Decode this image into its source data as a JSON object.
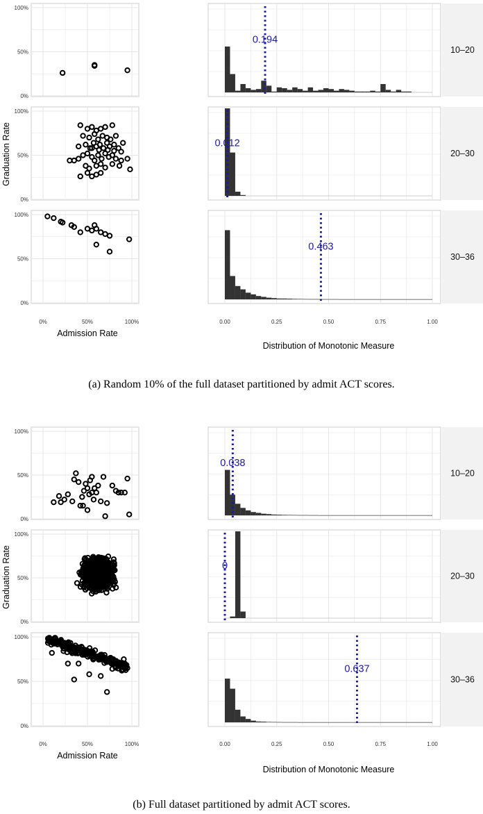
{
  "chart_data": [
    {
      "figure": "a",
      "caption": "(a) Random 10% of the full dataset partitioned by admit ACT scores.",
      "scatter": {
        "type": "scatter",
        "xlabel": "Admission Rate",
        "ylabel": "Graduation Rate",
        "xlim": [
          0,
          1
        ],
        "ylim": [
          0,
          1
        ],
        "x_ticks": [
          "0%",
          "50%",
          "100%"
        ],
        "y_ticks": [
          "0%",
          "50%",
          "100%"
        ],
        "panels": [
          {
            "facet": "10–20",
            "points": [
              [
                0.22,
                0.26
              ],
              [
                0.58,
                0.35
              ],
              [
                0.58,
                0.34
              ],
              [
                0.95,
                0.29
              ]
            ]
          },
          {
            "facet": "20–30",
            "points": [
              [
                0.42,
                0.84
              ],
              [
                0.5,
                0.8
              ],
              [
                0.55,
                0.82
              ],
              [
                0.6,
                0.78
              ],
              [
                0.65,
                0.8
              ],
              [
                0.7,
                0.82
              ],
              [
                0.78,
                0.84
              ],
              [
                0.45,
                0.72
              ],
              [
                0.52,
                0.7
              ],
              [
                0.58,
                0.74
              ],
              [
                0.62,
                0.68
              ],
              [
                0.67,
                0.72
              ],
              [
                0.72,
                0.7
              ],
              [
                0.76,
                0.68
              ],
              [
                0.82,
                0.72
              ],
              [
                0.4,
                0.6
              ],
              [
                0.48,
                0.62
              ],
              [
                0.53,
                0.58
              ],
              [
                0.57,
                0.64
              ],
              [
                0.6,
                0.6
              ],
              [
                0.64,
                0.62
              ],
              [
                0.68,
                0.58
              ],
              [
                0.72,
                0.64
              ],
              [
                0.75,
                0.6
              ],
              [
                0.8,
                0.62
              ],
              [
                0.85,
                0.58
              ],
              [
                0.9,
                0.64
              ],
              [
                0.35,
                0.44
              ],
              [
                0.4,
                0.46
              ],
              [
                0.45,
                0.5
              ],
              [
                0.5,
                0.52
              ],
              [
                0.55,
                0.48
              ],
              [
                0.58,
                0.44
              ],
              [
                0.62,
                0.5
              ],
              [
                0.66,
                0.46
              ],
              [
                0.7,
                0.52
              ],
              [
                0.74,
                0.48
              ],
              [
                0.78,
                0.5
              ],
              [
                0.82,
                0.46
              ],
              [
                0.88,
                0.44
              ],
              [
                0.95,
                0.46
              ],
              [
                0.3,
                0.44
              ],
              [
                0.48,
                0.38
              ],
              [
                0.52,
                0.35
              ],
              [
                0.6,
                0.38
              ],
              [
                0.65,
                0.4
              ],
              [
                0.7,
                0.36
              ],
              [
                0.78,
                0.4
              ],
              [
                0.86,
                0.38
              ],
              [
                0.98,
                0.34
              ],
              [
                0.42,
                0.26
              ],
              [
                0.55,
                0.26
              ],
              [
                0.6,
                0.28
              ],
              [
                0.5,
                0.3
              ],
              [
                0.65,
                0.3
              ],
              [
                0.55,
                0.58
              ],
              [
                0.63,
                0.56
              ],
              [
                0.73,
                0.56
              ],
              [
                0.8,
                0.55
              ],
              [
                0.88,
                0.54
              ]
            ]
          },
          {
            "facet": "30–36",
            "points": [
              [
                0.05,
                0.98
              ],
              [
                0.12,
                0.96
              ],
              [
                0.2,
                0.92
              ],
              [
                0.22,
                0.91
              ],
              [
                0.32,
                0.88
              ],
              [
                0.35,
                0.86
              ],
              [
                0.42,
                0.8
              ],
              [
                0.5,
                0.84
              ],
              [
                0.55,
                0.82
              ],
              [
                0.58,
                0.88
              ],
              [
                0.6,
                0.84
              ],
              [
                0.65,
                0.8
              ],
              [
                0.7,
                0.78
              ],
              [
                0.75,
                0.76
              ],
              [
                0.6,
                0.66
              ],
              [
                0.75,
                0.58
              ],
              [
                0.97,
                0.72
              ]
            ]
          }
        ]
      },
      "histogram": {
        "type": "bar",
        "xlabel": "Distribution of Monotonic Measure",
        "xlim": [
          0,
          1
        ],
        "x_ticks": [
          "0.00",
          "0.25",
          "0.50",
          "0.75",
          "1.00"
        ],
        "bin_width": 0.025,
        "panels": [
          {
            "facet": "10–20",
            "heights": [
              0.55,
              0.22,
              0.02,
              0.1,
              0.05,
              0.03,
              0.04,
              0.14,
              0.08,
              0.01,
              0.06,
              0.05,
              0.03,
              0.06,
              0.04,
              0.02,
              0.06,
              0.02,
              0.03,
              0.05,
              0.04,
              0.02,
              0.04,
              0.03,
              0.02,
              0.01,
              0.01,
              0.01,
              0.02,
              0.01,
              0.1,
              0.03,
              0.01,
              0.03,
              0.01,
              0.01,
              0.0,
              0.0,
              0.0,
              0.0
            ],
            "vline": 0.194,
            "vline_label": "0.194"
          },
          {
            "facet": "20–30",
            "heights": [
              1.05,
              0.52,
              0.05,
              0.01,
              0,
              0,
              0,
              0,
              0,
              0,
              0,
              0,
              0,
              0,
              0,
              0,
              0,
              0,
              0,
              0,
              0,
              0,
              0,
              0,
              0,
              0,
              0,
              0,
              0,
              0,
              0,
              0,
              0,
              0,
              0,
              0,
              0,
              0,
              0,
              0
            ],
            "vline": 0.012,
            "vline_label": "0.012"
          },
          {
            "facet": "30–36",
            "heights": [
              0.83,
              0.28,
              0.16,
              0.12,
              0.08,
              0.06,
              0.04,
              0.03,
              0.02,
              0.015,
              0.01,
              0.01,
              0.008,
              0.006,
              0.005,
              0.004,
              0.003,
              0.003,
              0.002,
              0.002,
              0.002,
              0.002,
              0.001,
              0.001,
              0.001,
              0.001,
              0.001,
              0.001,
              0.001,
              0.001,
              0.001,
              0.001,
              0.001,
              0.001,
              0.001,
              0.001,
              0.001,
              0.001,
              0.001,
              0.001
            ],
            "vline": 0.463,
            "vline_label": "0.463"
          }
        ]
      }
    },
    {
      "figure": "b",
      "caption": "(b) Full dataset partitioned by admit ACT scores.",
      "scatter": {
        "type": "scatter",
        "xlabel": "Admission Rate",
        "ylabel": "Graduation Rate",
        "xlim": [
          0,
          1
        ],
        "ylim": [
          0,
          1
        ],
        "x_ticks": [
          "0%",
          "50%",
          "100%"
        ],
        "y_ticks": [
          "0%",
          "50%",
          "100%"
        ],
        "panels": [
          {
            "facet": "10–20",
            "points": [
              [
                0.12,
                0.19
              ],
              [
                0.18,
                0.26
              ],
              [
                0.2,
                0.19
              ],
              [
                0.24,
                0.22
              ],
              [
                0.28,
                0.28
              ],
              [
                0.33,
                0.2
              ],
              [
                0.35,
                0.45
              ],
              [
                0.37,
                0.52
              ],
              [
                0.4,
                0.42
              ],
              [
                0.42,
                0.15
              ],
              [
                0.44,
                0.25
              ],
              [
                0.46,
                0.32
              ],
              [
                0.48,
                0.4
              ],
              [
                0.5,
                0.35
              ],
              [
                0.52,
                0.28
              ],
              [
                0.53,
                0.44
              ],
              [
                0.55,
                0.3
              ],
              [
                0.55,
                0.48
              ],
              [
                0.57,
                0.22
              ],
              [
                0.58,
                0.35
              ],
              [
                0.6,
                0.3
              ],
              [
                0.62,
                0.38
              ],
              [
                0.65,
                0.2
              ],
              [
                0.68,
                0.48
              ],
              [
                0.7,
                0.03
              ],
              [
                0.72,
                0.18
              ],
              [
                0.78,
                0.38
              ],
              [
                0.82,
                0.32
              ],
              [
                0.85,
                0.3
              ],
              [
                0.88,
                0.3
              ],
              [
                0.92,
                0.3
              ],
              [
                0.95,
                0.46
              ],
              [
                0.97,
                0.05
              ],
              [
                0.45,
                0.15
              ],
              [
                0.5,
                0.1
              ]
            ]
          },
          {
            "facet": "20–30",
            "cloud": {
              "x_center": 0.62,
              "x_spread": 0.28,
              "y_center": 0.55,
              "y_spread": 0.28,
              "count": 1100
            }
          },
          {
            "facet": "30–36",
            "trend": {
              "x_from": 0.05,
              "y_from": 0.97,
              "x_to": 0.95,
              "y_to": 0.66,
              "count": 220
            },
            "points": [
              [
                0.1,
                0.82
              ],
              [
                0.35,
                0.52
              ],
              [
                0.52,
                0.58
              ],
              [
                0.65,
                0.56
              ],
              [
                0.72,
                0.38
              ],
              [
                0.78,
                0.64
              ],
              [
                0.85,
                0.68
              ],
              [
                0.92,
                0.7
              ],
              [
                0.28,
                0.7
              ],
              [
                0.4,
                0.7
              ]
            ]
          }
        ]
      },
      "histogram": {
        "type": "bar",
        "xlabel": "Distribution of Monotonic Measure",
        "xlim": [
          0,
          1
        ],
        "x_ticks": [
          "0.00",
          "0.25",
          "0.50",
          "0.75",
          "1.00"
        ],
        "bin_width": 0.025,
        "panels": [
          {
            "facet": "10–20",
            "heights": [
              0.55,
              0.25,
              0.14,
              0.09,
              0.06,
              0.04,
              0.03,
              0.02,
              0.015,
              0.01,
              0.008,
              0.006,
              0.005,
              0.004,
              0.003,
              0.003,
              0.002,
              0.002,
              0.001,
              0.001,
              0.001,
              0.001,
              0.001,
              0.001,
              0.001,
              0.001,
              0.001,
              0.001,
              0.001,
              0.001,
              0.001,
              0.001,
              0.001,
              0.001,
              0.001,
              0.001,
              0.001,
              0.001,
              0.001,
              0.001
            ],
            "vline": 0.038,
            "vline_label": "0.038"
          },
          {
            "facet": "20–30",
            "heights": [
              0,
              0.02,
              1.05,
              0.08,
              0,
              0,
              0,
              0,
              0,
              0,
              0,
              0,
              0,
              0,
              0,
              0,
              0,
              0,
              0,
              0,
              0,
              0,
              0,
              0,
              0,
              0,
              0,
              0,
              0,
              0,
              0,
              0,
              0,
              0,
              0,
              0,
              0,
              0,
              0,
              0
            ],
            "vline": 0.0,
            "vline_label": "0"
          },
          {
            "facet": "30–36",
            "heights": [
              0.52,
              0.4,
              0.15,
              0.07,
              0.04,
              0.02,
              0.01,
              0.008,
              0.005,
              0.004,
              0.003,
              0.002,
              0.002,
              0.002,
              0.001,
              0.001,
              0.001,
              0.001,
              0.001,
              0.001,
              0.001,
              0.001,
              0.001,
              0.001,
              0.001,
              0.001,
              0.001,
              0.001,
              0.001,
              0.001,
              0.001,
              0.001,
              0.001,
              0.001,
              0.001,
              0.001,
              0.001,
              0.001,
              0.001,
              0.001
            ],
            "vline": 0.637,
            "vline_label": "0.637"
          }
        ]
      }
    }
  ],
  "colors": {
    "panel_bg": "#ffffff",
    "panel_border": "#dddddd",
    "grid": "#e6e6e6",
    "bar": "#333333",
    "vline": "#1a1aa6",
    "strip_bg": "#f2f2f2",
    "point": "#000000"
  }
}
